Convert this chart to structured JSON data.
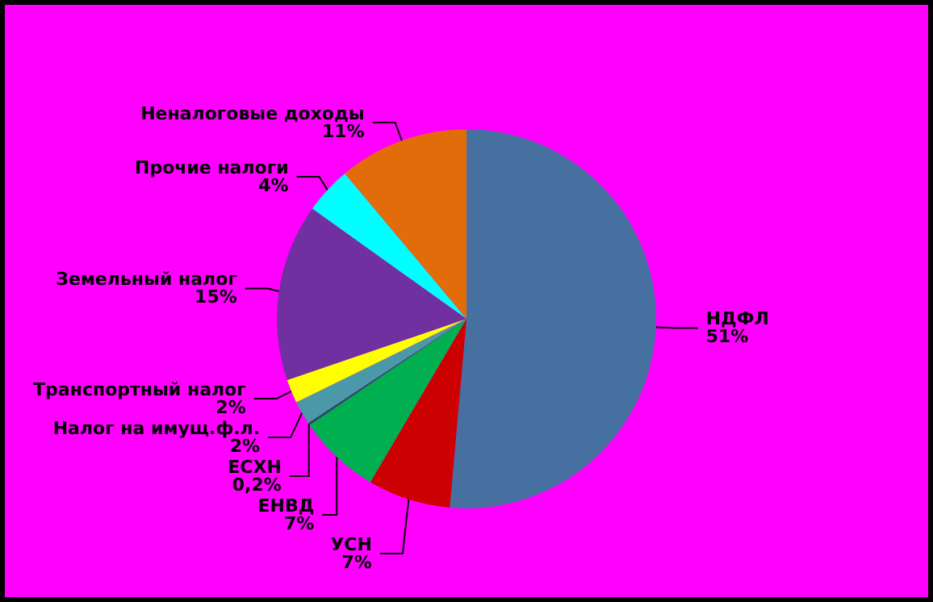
{
  "chart_data": {
    "type": "pie",
    "legend": false,
    "categories": [
      "НДФЛ",
      "УСН",
      "ЕНВД",
      "ЕСХН",
      "Налог на имущ.ф.л.",
      "Транспортный налог",
      "Земельный налог",
      "Прочие налоги",
      "Неналоговые доходы"
    ],
    "values": [
      51,
      7,
      7,
      0.2,
      2,
      2,
      15,
      4,
      11
    ],
    "value_labels": [
      "51%",
      "7%",
      "7%",
      "0,2%",
      "2%",
      "2%",
      "15%",
      "4%",
      "11%"
    ],
    "colors": [
      "#4670a0",
      "#cc0000",
      "#00b050",
      "#1f4e5a",
      "#4a98a8",
      "#ffff00",
      "#7030a0",
      "#00ffff",
      "#e36c0a"
    ]
  }
}
